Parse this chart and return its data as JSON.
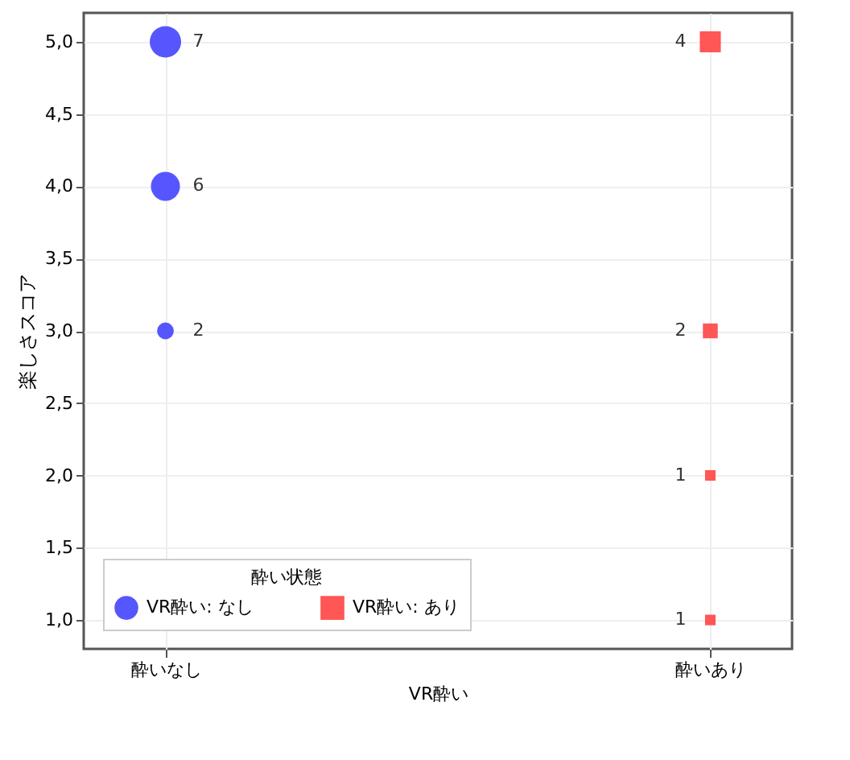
{
  "chart_data": {
    "type": "bubble",
    "xlabel": "VR酔い",
    "ylabel": "楽しさスコア",
    "legend_title": "酔い状態",
    "categories": [
      "酔いなし",
      "酔いあり"
    ],
    "series": [
      {
        "name": "VR酔い: なし",
        "color": "#4444ff",
        "marker": "circle",
        "x": [
          "酔いなし",
          "酔いなし",
          "酔いなし"
        ],
        "values": [
          5,
          4,
          3
        ],
        "sizes": [
          7,
          6,
          2
        ],
        "value_labels": [
          "7",
          "6",
          "2"
        ]
      },
      {
        "name": "VR酔い: あり",
        "color": "#ff4444",
        "marker": "square",
        "x": [
          "酔いあり",
          "酔いあり",
          "酔いあり",
          "酔いあり"
        ],
        "values": [
          5,
          3,
          2,
          1
        ],
        "sizes": [
          4,
          2,
          1,
          1
        ],
        "value_labels": [
          "4",
          "2",
          "1",
          "1"
        ]
      }
    ],
    "ylim": [
      0.8,
      5.2
    ],
    "yticks": [
      {
        "value": 1,
        "label": "1,0"
      },
      {
        "value": 1.5,
        "label": "1,5"
      },
      {
        "value": 2,
        "label": "2,0"
      },
      {
        "value": 2.5,
        "label": "2,5"
      },
      {
        "value": 3,
        "label": "3,0"
      },
      {
        "value": 3.5,
        "label": "3,5"
      },
      {
        "value": 4,
        "label": "4,0"
      },
      {
        "value": 4.5,
        "label": "4,5"
      },
      {
        "value": 5,
        "label": "5,0"
      }
    ],
    "grid": true,
    "legend": "bottom"
  }
}
